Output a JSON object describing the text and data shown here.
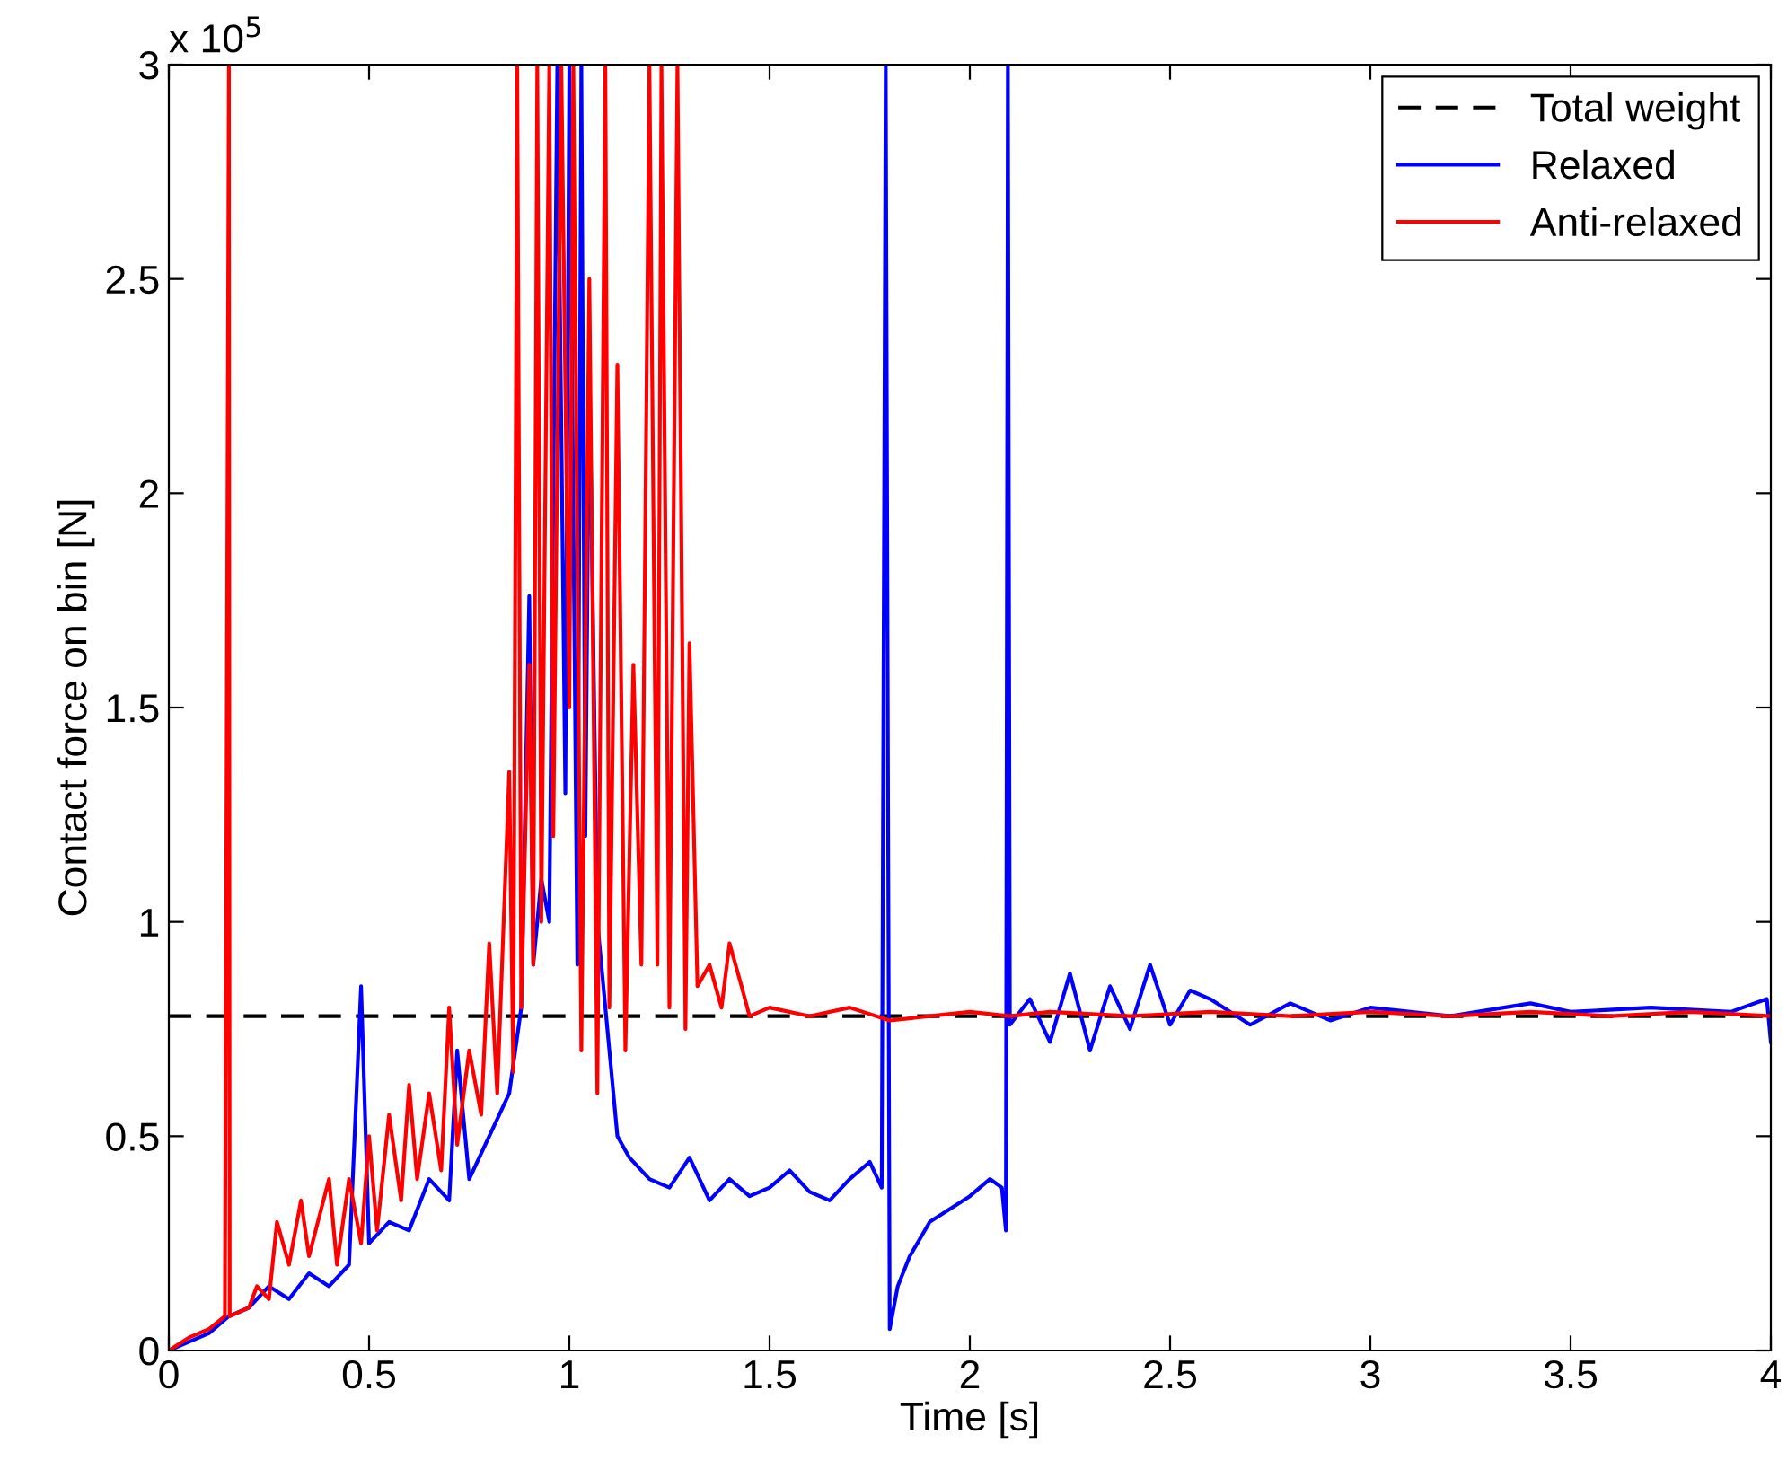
{
  "chart_data": {
    "type": "line",
    "xlabel": "Time [s]",
    "ylabel": "Contact force on bin [N]",
    "annotations": [
      "x 10$^{5}$"
    ],
    "xlim": [
      0,
      4
    ],
    "ylim": [
      0,
      3
    ],
    "xticks": [
      0,
      0.5,
      1,
      1.5,
      2,
      2.5,
      3,
      3.5,
      4
    ],
    "yticks": [
      0,
      0.5,
      1,
      1.5,
      2,
      2.5,
      3
    ],
    "grid": false,
    "legend": "top right",
    "marker": "none",
    "series": [
      {
        "name": "Total weight",
        "color": "#000000",
        "line_style": "dashed",
        "x": [
          0,
          4
        ],
        "values": [
          0.78,
          0.78
        ]
      },
      {
        "name": "Relaxed",
        "color": "#0000ff",
        "line_style": "solid",
        "x": [
          0,
          0.05,
          0.1,
          0.15,
          0.2,
          0.25,
          0.3,
          0.35,
          0.4,
          0.45,
          0.48,
          0.5,
          0.55,
          0.6,
          0.65,
          0.7,
          0.72,
          0.75,
          0.8,
          0.85,
          0.88,
          0.9,
          0.91,
          0.93,
          0.95,
          0.97,
          0.99,
          1.0,
          1.02,
          1.03,
          1.04,
          1.05,
          1.07,
          1.1,
          1.12,
          1.15,
          1.2,
          1.25,
          1.3,
          1.35,
          1.4,
          1.45,
          1.5,
          1.55,
          1.6,
          1.65,
          1.7,
          1.75,
          1.78,
          1.79,
          1.8,
          1.82,
          1.85,
          1.9,
          1.95,
          2.0,
          2.05,
          2.08,
          2.09,
          2.095,
          2.1,
          2.15,
          2.2,
          2.25,
          2.3,
          2.35,
          2.4,
          2.45,
          2.5,
          2.55,
          2.6,
          2.7,
          2.8,
          2.9,
          3.0,
          3.2,
          3.4,
          3.5,
          3.7,
          3.9,
          3.99,
          4.0
        ],
        "values": [
          0,
          0.02,
          0.04,
          0.08,
          0.1,
          0.15,
          0.12,
          0.18,
          0.15,
          0.2,
          0.85,
          0.25,
          0.3,
          0.28,
          0.4,
          0.35,
          0.7,
          0.4,
          0.5,
          0.6,
          0.8,
          1.76,
          0.9,
          1.1,
          1.0,
          3,
          1.3,
          3,
          0.9,
          3,
          1.2,
          2.3,
          1.0,
          0.7,
          0.5,
          0.45,
          0.4,
          0.38,
          0.45,
          0.35,
          0.4,
          0.36,
          0.38,
          0.42,
          0.37,
          0.35,
          0.4,
          0.44,
          0.38,
          3,
          0.05,
          0.15,
          0.22,
          0.3,
          0.33,
          0.36,
          0.4,
          0.38,
          0.28,
          3,
          0.76,
          0.82,
          0.72,
          0.88,
          0.7,
          0.85,
          0.75,
          0.9,
          0.76,
          0.84,
          0.82,
          0.76,
          0.81,
          0.77,
          0.8,
          0.78,
          0.81,
          0.79,
          0.8,
          0.79,
          0.82,
          0.72
        ]
      },
      {
        "name": "Anti-relaxed",
        "color": "#ff0000",
        "line_style": "solid",
        "x": [
          0,
          0.05,
          0.1,
          0.14,
          0.15,
          0.152,
          0.2,
          0.22,
          0.25,
          0.27,
          0.3,
          0.33,
          0.35,
          0.4,
          0.42,
          0.45,
          0.48,
          0.5,
          0.52,
          0.55,
          0.58,
          0.6,
          0.62,
          0.65,
          0.68,
          0.7,
          0.72,
          0.75,
          0.78,
          0.8,
          0.82,
          0.85,
          0.86,
          0.87,
          0.88,
          0.9,
          0.91,
          0.92,
          0.93,
          0.95,
          0.96,
          0.98,
          1.0,
          1.01,
          1.03,
          1.05,
          1.07,
          1.09,
          1.1,
          1.12,
          1.14,
          1.16,
          1.18,
          1.2,
          1.22,
          1.23,
          1.25,
          1.27,
          1.29,
          1.3,
          1.32,
          1.35,
          1.38,
          1.4,
          1.43,
          1.45,
          1.5,
          1.6,
          1.7,
          1.8,
          1.9,
          2.0,
          2.1,
          2.2,
          2.4,
          2.6,
          2.8,
          3.0,
          3.2,
          3.4,
          3.6,
          3.8,
          4.0
        ],
        "values": [
          0,
          0.03,
          0.05,
          0.08,
          3,
          0.08,
          0.1,
          0.15,
          0.12,
          0.3,
          0.2,
          0.35,
          0.22,
          0.4,
          0.2,
          0.4,
          0.25,
          0.5,
          0.28,
          0.55,
          0.35,
          0.62,
          0.4,
          0.6,
          0.42,
          0.8,
          0.48,
          0.7,
          0.55,
          0.95,
          0.6,
          1.35,
          0.65,
          3,
          0.8,
          1.6,
          0.9,
          3,
          1.0,
          3,
          1.2,
          3,
          1.5,
          3,
          0.7,
          2.5,
          0.6,
          3,
          0.8,
          2.3,
          0.7,
          1.6,
          0.9,
          3,
          0.9,
          3,
          0.8,
          3,
          0.75,
          1.65,
          0.85,
          0.9,
          0.8,
          0.95,
          0.85,
          0.78,
          0.8,
          0.78,
          0.8,
          0.77,
          0.78,
          0.79,
          0.78,
          0.79,
          0.78,
          0.79,
          0.78,
          0.79,
          0.78,
          0.79,
          0.78,
          0.79,
          0.78
        ]
      }
    ]
  }
}
